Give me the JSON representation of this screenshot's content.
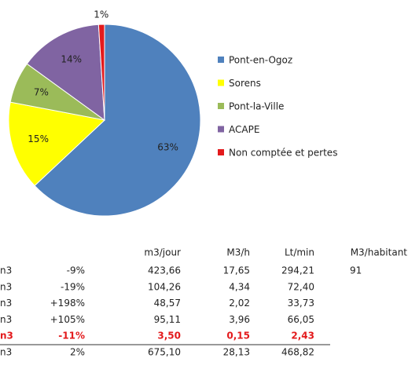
{
  "chart_data": {
    "type": "pie",
    "categories": [
      "Pont-en-Ogoz",
      "Sorens",
      "Pont-la-Ville",
      "ACAPE",
      "Non comptée et pertes"
    ],
    "values": [
      63,
      15,
      7,
      14,
      1
    ],
    "value_labels": [
      "63%",
      "15%",
      "7%",
      "14%",
      "1%"
    ],
    "colors": [
      "#4f81bd",
      "#ffff00",
      "#9bbb59",
      "#8064a2",
      "#e31a1c"
    ],
    "legend": "right"
  },
  "table": {
    "headers": [
      "m3/jour",
      "M3/h",
      "Lt/min",
      "M3/habitant"
    ],
    "rows": [
      [
        "n3",
        "-9%",
        "423,66",
        "17,65",
        "294,21",
        "91"
      ],
      [
        "n3",
        "-19%",
        "104,26",
        "4,34",
        "72,40"
      ],
      [
        "n3",
        "+198%",
        "48,57",
        "2,02",
        "33,73"
      ],
      [
        "n3",
        "+105%",
        "95,11",
        "3,96",
        "66,05"
      ],
      [
        "n3",
        "-11%",
        "3,50",
        "0,15",
        "2,43"
      ],
      [
        "n3",
        "2%",
        "675,10",
        "28,13",
        "468,82"
      ]
    ]
  }
}
